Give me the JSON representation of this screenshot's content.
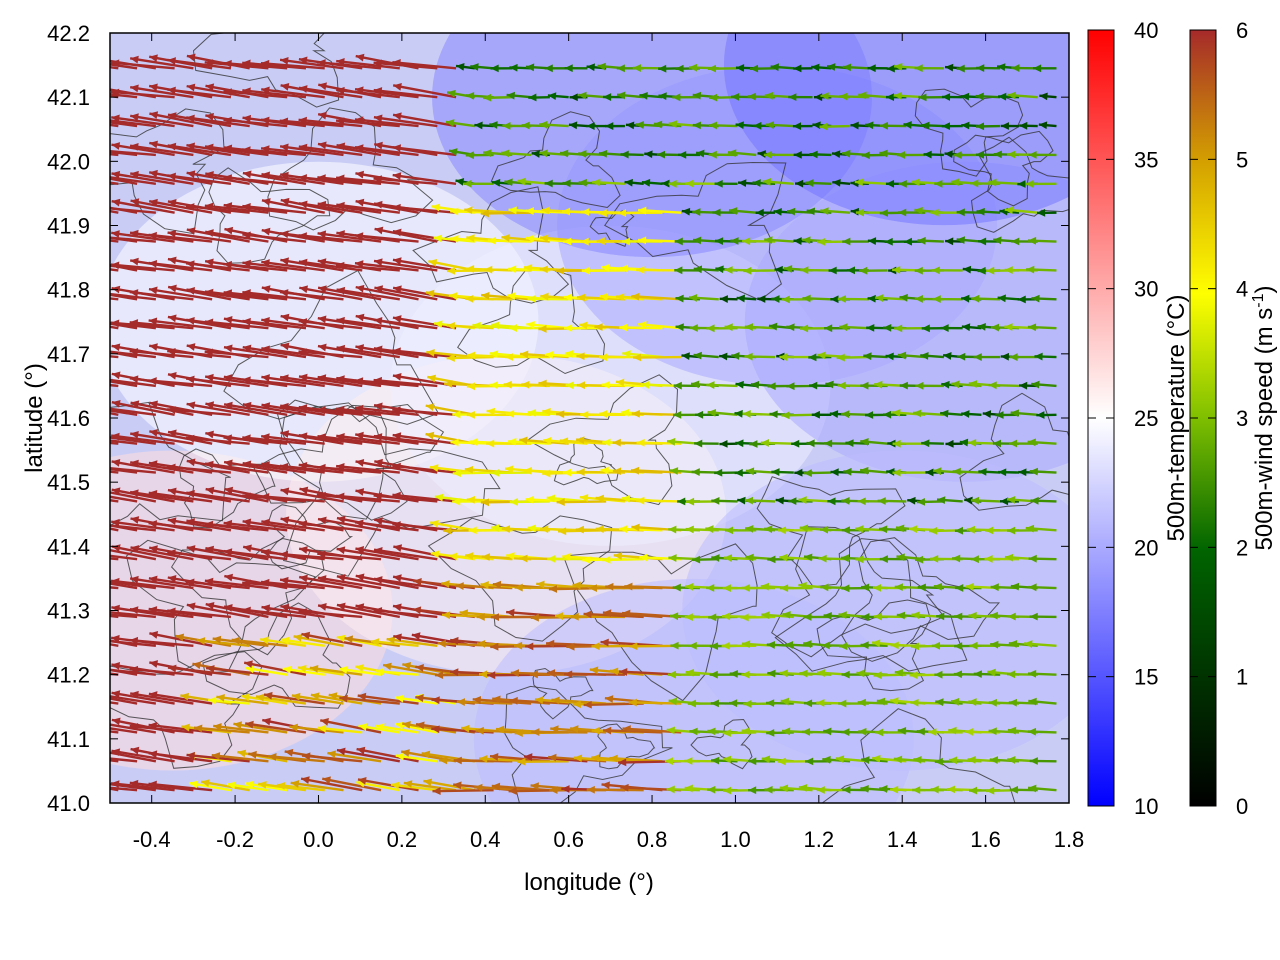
{
  "chart_data": {
    "type": "vector-field",
    "xlabel": "longitude (°)",
    "ylabel": "latitude (°)",
    "xlim": [
      -0.5,
      1.8
    ],
    "ylim": [
      41.0,
      42.2
    ],
    "xticks": [
      "-0.4",
      "-0.2",
      "0.0",
      "0.2",
      "0.4",
      "0.6",
      "0.8",
      "1.0",
      "1.2",
      "1.4",
      "1.6",
      "1.8"
    ],
    "yticks": [
      "41.0",
      "41.1",
      "41.2",
      "41.3",
      "41.4",
      "41.5",
      "41.6",
      "41.7",
      "41.8",
      "41.9",
      "42.0",
      "42.1",
      "42.2"
    ],
    "background": {
      "variable": "500m-temperature",
      "label": "500m-temperature (°C)",
      "range": [
        10,
        40
      ],
      "ticks": [
        "10",
        "15",
        "20",
        "25",
        "30",
        "35",
        "40"
      ],
      "colors": [
        "#0000ff",
        "#ffffff",
        "#ff0000"
      ],
      "regions": [
        {
          "lon": -0.35,
          "lat": 41.3,
          "temp": 27
        },
        {
          "lon": 0.0,
          "lat": 41.75,
          "temp": 25
        },
        {
          "lon": 0.45,
          "lat": 41.45,
          "temp": 26
        },
        {
          "lon": 0.7,
          "lat": 41.65,
          "temp": 24
        },
        {
          "lon": 1.1,
          "lat": 41.9,
          "temp": 20
        },
        {
          "lon": 1.55,
          "lat": 41.75,
          "temp": 20
        },
        {
          "lon": 0.8,
          "lat": 42.1,
          "temp": 18
        },
        {
          "lon": 1.5,
          "lat": 42.15,
          "temp": 17
        },
        {
          "lon": 1.4,
          "lat": 41.3,
          "temp": 21
        },
        {
          "lon": 0.9,
          "lat": 41.1,
          "temp": 21
        }
      ]
    },
    "vectors": {
      "variable": "500m-wind speed",
      "label": "500m-wind speed (m s-1)",
      "range": [
        0,
        6
      ],
      "ticks": [
        "0",
        "1",
        "2",
        "3",
        "4",
        "5",
        "6"
      ],
      "colors": [
        "#000000",
        "#006400",
        "#7fbf00",
        "#ffff00",
        "#d4a000",
        "#a52a2a"
      ],
      "direction": "westward",
      "regimes": [
        {
          "area": "west of 0.4°E",
          "speed": 6,
          "direction_deg": 172
        },
        {
          "area": "0.4–0.9°E, 41.4–41.9°N",
          "speed": 3.8,
          "direction_deg": 178
        },
        {
          "area": "east of 1.0°E, south of 41.4°N",
          "speed": 2.2,
          "direction_deg": 180
        },
        {
          "area": "east of 1.0°E, 41.5–42.1°N",
          "speed": 1.5,
          "direction_deg": 180
        }
      ]
    },
    "contours": {
      "description": "terrain elevation isolines",
      "color": "#333333"
    }
  }
}
